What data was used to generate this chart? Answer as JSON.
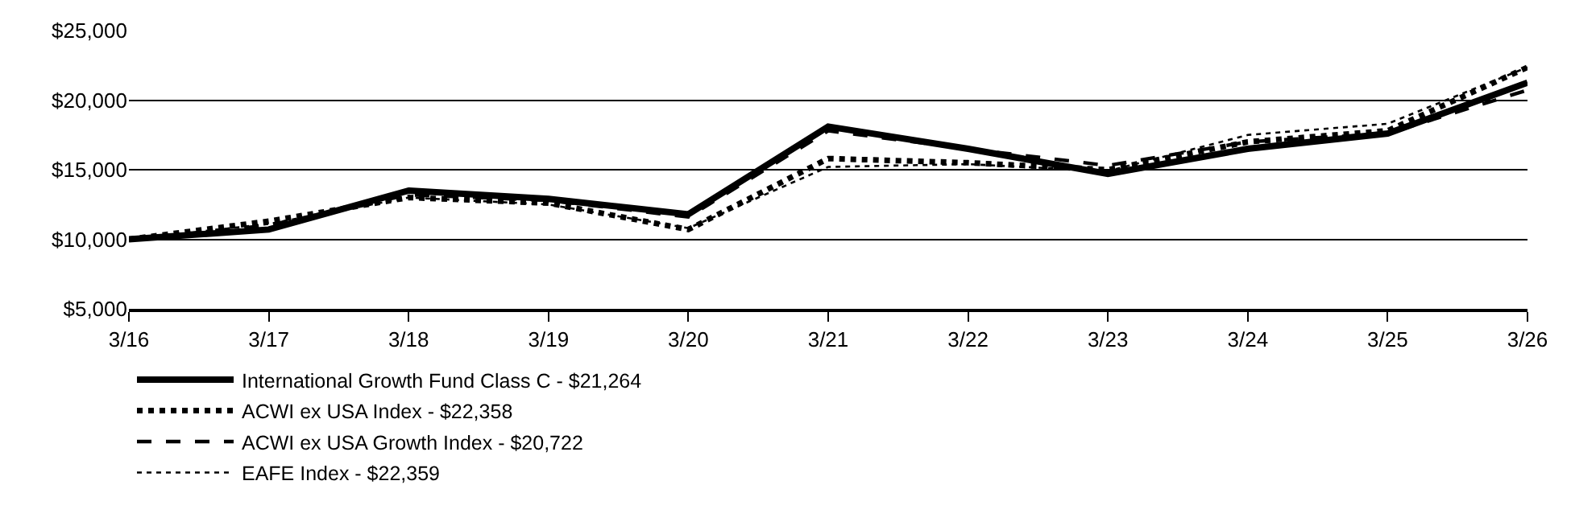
{
  "chart_data": {
    "type": "line",
    "categories": [
      "3/16",
      "3/17",
      "3/18",
      "3/19",
      "3/20",
      "3/21",
      "3/22",
      "3/23",
      "3/24",
      "3/25",
      "3/26"
    ],
    "series": [
      {
        "name": "International Growth Fund Class C - $21,264",
        "color": "#000000",
        "line_style": "solid",
        "values": [
          10000,
          10700,
          13500,
          12900,
          11800,
          18100,
          16500,
          14700,
          16500,
          17600,
          21264
        ]
      },
      {
        "name": "ACWI ex USA Index - $22,358",
        "color": "#000000",
        "line_style": "dotted",
        "values": [
          10000,
          11300,
          13000,
          12600,
          10700,
          15800,
          15500,
          15000,
          17000,
          17800,
          22358
        ]
      },
      {
        "name": "ACWI ex USA Growth Index - $20,722",
        "color": "#000000",
        "line_style": "dashed",
        "values": [
          10000,
          11000,
          13200,
          12800,
          11600,
          17800,
          16500,
          15300,
          17000,
          17600,
          20722
        ]
      },
      {
        "name": "EAFE Index - $22,359",
        "color": "#000000",
        "line_style": "dotted",
        "values": [
          10000,
          11100,
          13000,
          12500,
          10800,
          15200,
          15400,
          14900,
          17500,
          18300,
          22359
        ]
      }
    ],
    "ylim": [
      5000,
      25000
    ],
    "yticks": [
      {
        "value": 5000,
        "label": "$5,000"
      },
      {
        "value": 10000,
        "label": "$10,000"
      },
      {
        "value": 15000,
        "label": "$15,000"
      },
      {
        "value": 20000,
        "label": "$20,000"
      },
      {
        "value": 25000,
        "label": "$25,000"
      }
    ],
    "grid": "y",
    "legend": "bottom left",
    "marker": "none"
  }
}
